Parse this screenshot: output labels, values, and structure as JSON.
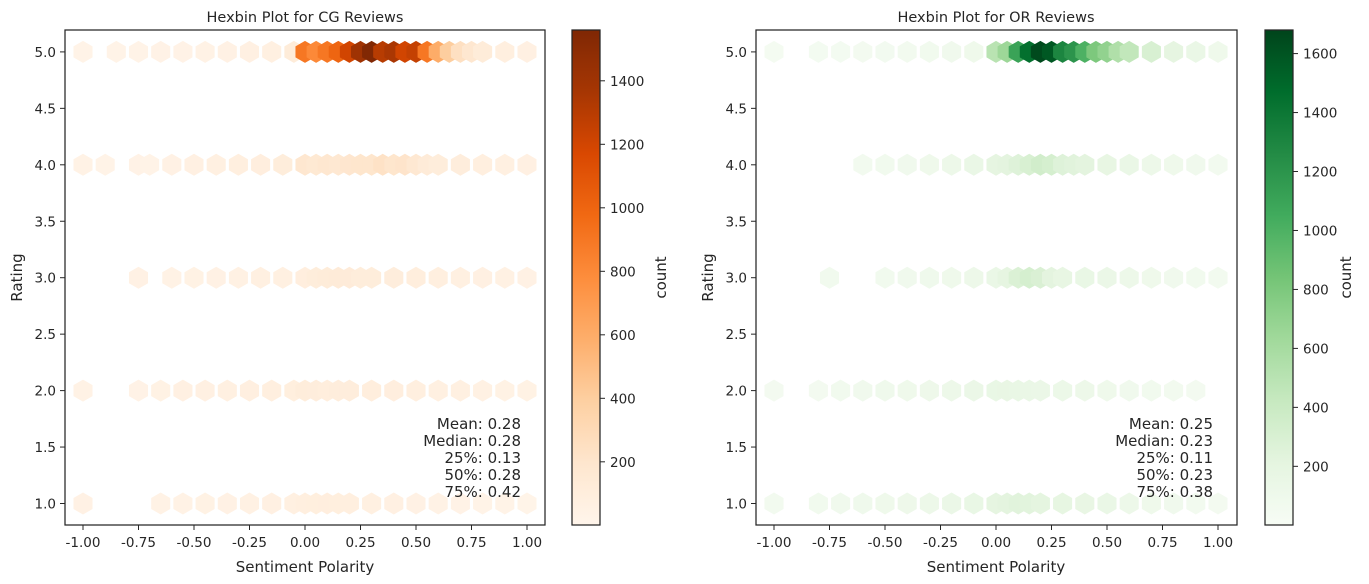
{
  "chart_data": [
    {
      "type": "heatmap",
      "subtype": "hexbin",
      "title": "Hexbin Plot for CG Reviews",
      "xlabel": "Sentiment Polarity",
      "ylabel": "Rating",
      "xlim": [
        -1.1,
        1.1
      ],
      "ylim": [
        0.8,
        5.2
      ],
      "xticks": [
        "-1.00",
        "-0.75",
        "-0.50",
        "-0.25",
        "0.00",
        "0.25",
        "0.50",
        "0.75",
        "1.00"
      ],
      "yticks": [
        "1.0",
        "1.5",
        "2.0",
        "2.5",
        "3.0",
        "3.5",
        "4.0",
        "4.5",
        "5.0"
      ],
      "colorbar": {
        "label": "count",
        "cmap": "Oranges",
        "min": 1,
        "max": 1560,
        "ticks": [
          "200",
          "400",
          "600",
          "800",
          "1000",
          "1200",
          "1400"
        ]
      },
      "stats": [
        "Mean: 0.28",
        "Median: 0.28",
        "25%: 0.13",
        "50%: 0.28",
        "75%: 0.42"
      ],
      "rows": [
        {
          "rating": 5.0,
          "cells": [
            [
              -1.0,
              30
            ],
            [
              -0.85,
              25
            ],
            [
              -0.75,
              30
            ],
            [
              -0.65,
              35
            ],
            [
              -0.55,
              35
            ],
            [
              -0.45,
              40
            ],
            [
              -0.35,
              50
            ],
            [
              -0.25,
              60
            ],
            [
              -0.15,
              70
            ],
            [
              -0.05,
              120
            ],
            [
              0.0,
              900
            ],
            [
              0.05,
              800
            ],
            [
              0.1,
              900
            ],
            [
              0.15,
              1000
            ],
            [
              0.2,
              1200
            ],
            [
              0.25,
              1400
            ],
            [
              0.3,
              1550
            ],
            [
              0.35,
              1300
            ],
            [
              0.4,
              1350
            ],
            [
              0.45,
              1200
            ],
            [
              0.5,
              1250
            ],
            [
              0.55,
              900
            ],
            [
              0.6,
              600
            ],
            [
              0.65,
              400
            ],
            [
              0.7,
              250
            ],
            [
              0.75,
              180
            ],
            [
              0.8,
              120
            ],
            [
              0.9,
              80
            ],
            [
              1.0,
              60
            ]
          ]
        },
        {
          "rating": 4.0,
          "cells": [
            [
              -1.0,
              40
            ],
            [
              -0.9,
              30
            ],
            [
              -0.75,
              35
            ],
            [
              -0.7,
              30
            ],
            [
              -0.6,
              50
            ],
            [
              -0.5,
              60
            ],
            [
              -0.4,
              70
            ],
            [
              -0.3,
              80
            ],
            [
              -0.2,
              90
            ],
            [
              -0.1,
              110
            ],
            [
              0.0,
              180
            ],
            [
              0.05,
              160
            ],
            [
              0.1,
              180
            ],
            [
              0.15,
              170
            ],
            [
              0.2,
              190
            ],
            [
              0.25,
              200
            ],
            [
              0.3,
              200
            ],
            [
              0.35,
              230
            ],
            [
              0.4,
              200
            ],
            [
              0.45,
              210
            ],
            [
              0.5,
              170
            ],
            [
              0.55,
              130
            ],
            [
              0.6,
              110
            ],
            [
              0.7,
              100
            ],
            [
              0.8,
              80
            ],
            [
              0.9,
              70
            ],
            [
              1.0,
              60
            ]
          ]
        },
        {
          "rating": 3.0,
          "cells": [
            [
              -0.75,
              50
            ],
            [
              -0.6,
              40
            ],
            [
              -0.5,
              45
            ],
            [
              -0.4,
              50
            ],
            [
              -0.3,
              55
            ],
            [
              -0.2,
              65
            ],
            [
              -0.1,
              70
            ],
            [
              0.0,
              90
            ],
            [
              0.05,
              110
            ],
            [
              0.1,
              120
            ],
            [
              0.15,
              130
            ],
            [
              0.2,
              125
            ],
            [
              0.25,
              110
            ],
            [
              0.3,
              110
            ],
            [
              0.4,
              100
            ],
            [
              0.5,
              95
            ],
            [
              0.6,
              80
            ],
            [
              0.7,
              70
            ],
            [
              0.8,
              60
            ],
            [
              0.9,
              55
            ],
            [
              1.0,
              50
            ]
          ]
        },
        {
          "rating": 2.0,
          "cells": [
            [
              -1.0,
              40
            ],
            [
              -0.75,
              35
            ],
            [
              -0.65,
              45
            ],
            [
              -0.55,
              60
            ],
            [
              -0.45,
              60
            ],
            [
              -0.35,
              70
            ],
            [
              -0.25,
              75
            ],
            [
              -0.15,
              80
            ],
            [
              -0.05,
              85
            ],
            [
              0.0,
              110
            ],
            [
              0.05,
              100
            ],
            [
              0.1,
              95
            ],
            [
              0.15,
              100
            ],
            [
              0.2,
              100
            ],
            [
              0.3,
              95
            ],
            [
              0.4,
              90
            ],
            [
              0.5,
              80
            ],
            [
              0.6,
              70
            ],
            [
              0.7,
              65
            ],
            [
              0.8,
              55
            ],
            [
              0.9,
              45
            ],
            [
              1.0,
              45
            ]
          ]
        },
        {
          "rating": 1.0,
          "cells": [
            [
              -1.0,
              50
            ],
            [
              -0.65,
              40
            ],
            [
              -0.55,
              40
            ],
            [
              -0.45,
              45
            ],
            [
              -0.35,
              50
            ],
            [
              -0.25,
              55
            ],
            [
              -0.15,
              60
            ],
            [
              -0.05,
              70
            ],
            [
              0.0,
              80
            ],
            [
              0.05,
              85
            ],
            [
              0.1,
              90
            ],
            [
              0.15,
              85
            ],
            [
              0.2,
              80
            ],
            [
              0.3,
              70
            ],
            [
              0.4,
              60
            ],
            [
              0.5,
              50
            ],
            [
              0.6,
              40
            ],
            [
              0.7,
              35
            ],
            [
              0.8,
              30
            ],
            [
              0.9,
              25
            ],
            [
              1.0,
              20
            ]
          ]
        }
      ]
    },
    {
      "type": "heatmap",
      "subtype": "hexbin",
      "title": "Hexbin Plot for OR Reviews",
      "xlabel": "Sentiment Polarity",
      "ylabel": "Rating",
      "xlim": [
        -1.1,
        1.1
      ],
      "ylim": [
        0.8,
        5.2
      ],
      "xticks": [
        "-1.00",
        "-0.75",
        "-0.50",
        "-0.25",
        "0.00",
        "0.25",
        "0.50",
        "0.75",
        "1.00"
      ],
      "yticks": [
        "1.0",
        "1.5",
        "2.0",
        "2.5",
        "3.0",
        "3.5",
        "4.0",
        "4.5",
        "5.0"
      ],
      "colorbar": {
        "label": "count",
        "cmap": "Greens",
        "min": 1,
        "max": 1680,
        "ticks": [
          "200",
          "400",
          "600",
          "800",
          "1000",
          "1200",
          "1400",
          "1600"
        ]
      },
      "stats": [
        "Mean: 0.25",
        "Median: 0.23",
        "25%: 0.11",
        "50%: 0.23",
        "75%: 0.38"
      ],
      "rows": [
        {
          "rating": 5.0,
          "cells": [
            [
              -1.0,
              40
            ],
            [
              -0.8,
              45
            ],
            [
              -0.7,
              45
            ],
            [
              -0.6,
              50
            ],
            [
              -0.5,
              55
            ],
            [
              -0.4,
              60
            ],
            [
              -0.3,
              70
            ],
            [
              -0.2,
              80
            ],
            [
              -0.1,
              100
            ],
            [
              0.0,
              500
            ],
            [
              0.05,
              650
            ],
            [
              0.1,
              1100
            ],
            [
              0.15,
              1450
            ],
            [
              0.2,
              1650
            ],
            [
              0.25,
              1580
            ],
            [
              0.3,
              1300
            ],
            [
              0.35,
              1200
            ],
            [
              0.4,
              1000
            ],
            [
              0.45,
              800
            ],
            [
              0.5,
              700
            ],
            [
              0.55,
              550
            ],
            [
              0.6,
              450
            ],
            [
              0.7,
              300
            ],
            [
              0.8,
              200
            ],
            [
              0.9,
              150
            ],
            [
              1.0,
              100
            ]
          ]
        },
        {
          "rating": 4.0,
          "cells": [
            [
              -0.6,
              60
            ],
            [
              -0.5,
              70
            ],
            [
              -0.4,
              80
            ],
            [
              -0.3,
              100
            ],
            [
              -0.2,
              120
            ],
            [
              -0.1,
              150
            ],
            [
              0.0,
              200
            ],
            [
              0.05,
              220
            ],
            [
              0.1,
              260
            ],
            [
              0.15,
              300
            ],
            [
              0.2,
              350
            ],
            [
              0.25,
              320
            ],
            [
              0.3,
              260
            ],
            [
              0.35,
              240
            ],
            [
              0.4,
              220
            ],
            [
              0.5,
              180
            ],
            [
              0.6,
              150
            ],
            [
              0.7,
              120
            ],
            [
              0.8,
              100
            ],
            [
              0.9,
              80
            ],
            [
              1.0,
              60
            ]
          ]
        },
        {
          "rating": 3.0,
          "cells": [
            [
              -0.75,
              70
            ],
            [
              -0.5,
              75
            ],
            [
              -0.4,
              80
            ],
            [
              -0.3,
              90
            ],
            [
              -0.2,
              100
            ],
            [
              -0.1,
              120
            ],
            [
              0.0,
              150
            ],
            [
              0.05,
              200
            ],
            [
              0.1,
              280
            ],
            [
              0.15,
              320
            ],
            [
              0.2,
              290
            ],
            [
              0.25,
              220
            ],
            [
              0.3,
              180
            ],
            [
              0.4,
              160
            ],
            [
              0.5,
              140
            ],
            [
              0.6,
              120
            ],
            [
              0.7,
              100
            ],
            [
              0.8,
              80
            ],
            [
              0.9,
              70
            ],
            [
              1.0,
              60
            ]
          ]
        },
        {
          "rating": 2.0,
          "cells": [
            [
              -1.0,
              50
            ],
            [
              -0.8,
              50
            ],
            [
              -0.7,
              70
            ],
            [
              -0.6,
              80
            ],
            [
              -0.5,
              90
            ],
            [
              -0.4,
              100
            ],
            [
              -0.3,
              110
            ],
            [
              -0.2,
              120
            ],
            [
              -0.1,
              140
            ],
            [
              0.0,
              160
            ],
            [
              0.05,
              170
            ],
            [
              0.1,
              160
            ],
            [
              0.15,
              150
            ],
            [
              0.2,
              140
            ],
            [
              0.3,
              130
            ],
            [
              0.4,
              120
            ],
            [
              0.5,
              100
            ],
            [
              0.6,
              80
            ],
            [
              0.7,
              70
            ],
            [
              0.8,
              60
            ],
            [
              0.9,
              50
            ]
          ]
        },
        {
          "rating": 1.0,
          "cells": [
            [
              -1.0,
              60
            ],
            [
              -0.8,
              70
            ],
            [
              -0.7,
              80
            ],
            [
              -0.6,
              90
            ],
            [
              -0.5,
              100
            ],
            [
              -0.4,
              110
            ],
            [
              -0.3,
              120
            ],
            [
              -0.2,
              140
            ],
            [
              -0.1,
              160
            ],
            [
              0.0,
              200
            ],
            [
              0.05,
              220
            ],
            [
              0.1,
              240
            ],
            [
              0.15,
              230
            ],
            [
              0.2,
              210
            ],
            [
              0.3,
              190
            ],
            [
              0.4,
              170
            ],
            [
              0.5,
              150
            ],
            [
              0.6,
              120
            ],
            [
              0.7,
              100
            ],
            [
              0.8,
              80
            ],
            [
              0.9,
              60
            ],
            [
              1.0,
              50
            ]
          ]
        }
      ]
    }
  ]
}
